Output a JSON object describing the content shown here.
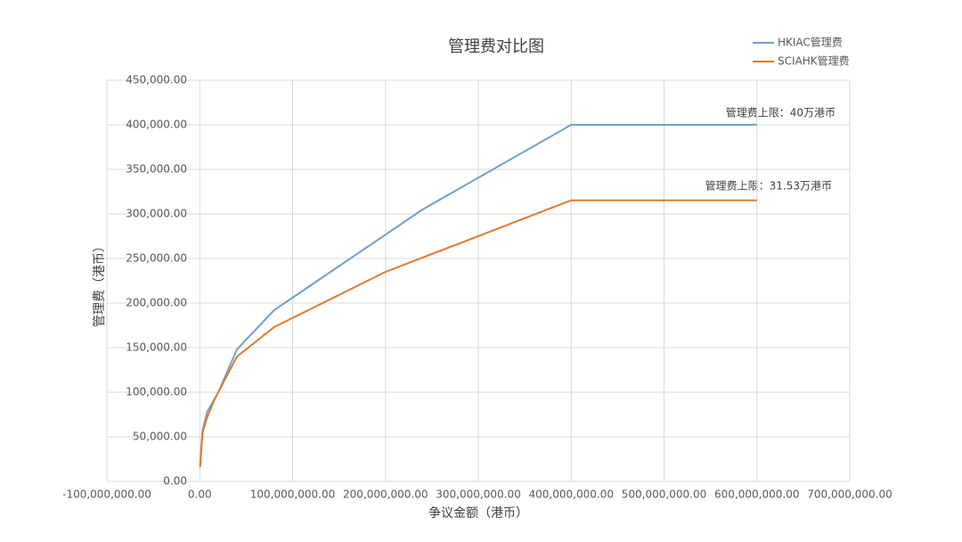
{
  "chart_data": {
    "type": "line",
    "title": "管理费对比图",
    "x_label": "争议金额（港币）",
    "y_label": "管理费（港币）",
    "xlim": [
      -100000000,
      700000000
    ],
    "xticks": [
      {
        "value": -100000000,
        "label": "-100,000,000.00"
      },
      {
        "value": 0,
        "label": "0.00"
      },
      {
        "value": 100000000,
        "label": "100,000,000.00"
      },
      {
        "value": 200000000,
        "label": "200,000,000.00"
      },
      {
        "value": 300000000,
        "label": "300,000,000.00"
      },
      {
        "value": 400000000,
        "label": "400,000,000.00"
      },
      {
        "value": 500000000,
        "label": "500,000,000.00"
      },
      {
        "value": 600000000,
        "label": "600,000,000.00"
      },
      {
        "value": 700000000,
        "label": "700,000,000.00"
      }
    ],
    "ylim": [
      0,
      450000
    ],
    "yticks": [
      {
        "value": 0,
        "label": "0.00"
      },
      {
        "value": 50000,
        "label": "50,000.00"
      },
      {
        "value": 100000,
        "label": "100,000.00"
      },
      {
        "value": 150000,
        "label": "150,000.00"
      },
      {
        "value": 200000,
        "label": "200,000.00"
      },
      {
        "value": 250000,
        "label": "250,000.00"
      },
      {
        "value": 300000,
        "label": "300,000.00"
      },
      {
        "value": 350000,
        "label": "350,000.00"
      },
      {
        "value": 400000,
        "label": "400,000.00"
      },
      {
        "value": 450000,
        "label": "450,000.00"
      }
    ],
    "grid": true,
    "legend": "top-right",
    "series": [
      {
        "name": "HKIAC管理费",
        "color": "#6f9fcf",
        "x": [
          400000,
          3000000,
          8000000,
          20000000,
          40000000,
          80000000,
          240000000,
          400000000,
          600000000
        ],
        "values": [
          19000,
          57000,
          78000,
          100000,
          148000,
          192000,
          305000,
          400000,
          400000
        ]
      },
      {
        "name": "SCIAHK管理费",
        "color": "#e07b2e",
        "x": [
          400000,
          3000000,
          8000000,
          16000000,
          40000000,
          80000000,
          200000000,
          400000000,
          600000000
        ],
        "values": [
          16000,
          55000,
          72000,
          92000,
          140000,
          173000,
          235000,
          315300,
          315300
        ]
      }
    ],
    "annotations": [
      "管理费上限：40万港币",
      "管理费上限：31.53万港币"
    ]
  }
}
